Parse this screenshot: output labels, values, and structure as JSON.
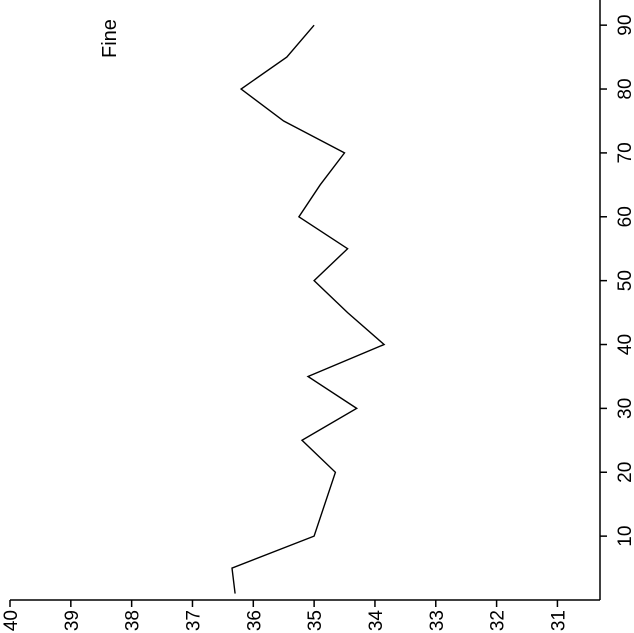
{
  "chart_data": {
    "type": "line",
    "orientation": "rotated-90-clockwise",
    "partial_title": "Fine",
    "x": [
      1,
      5,
      10,
      20,
      25,
      30,
      35,
      40,
      45,
      50,
      55,
      60,
      65,
      70,
      75,
      80,
      85,
      90
    ],
    "y": [
      36.3,
      36.35,
      35.0,
      34.65,
      35.2,
      34.3,
      35.1,
      33.85,
      34.45,
      35.0,
      34.45,
      35.25,
      34.9,
      34.5,
      35.5,
      36.2,
      35.45,
      35.0
    ],
    "x_ticks": [
      10,
      20,
      30,
      40,
      50,
      60,
      70,
      80,
      90
    ],
    "y_ticks": [
      40,
      39,
      38,
      37,
      36,
      35,
      34,
      33,
      32,
      31
    ],
    "xlim": [
      0,
      93
    ],
    "ylim": [
      30.3,
      40
    ],
    "grid": false,
    "line_color": "#000000"
  }
}
